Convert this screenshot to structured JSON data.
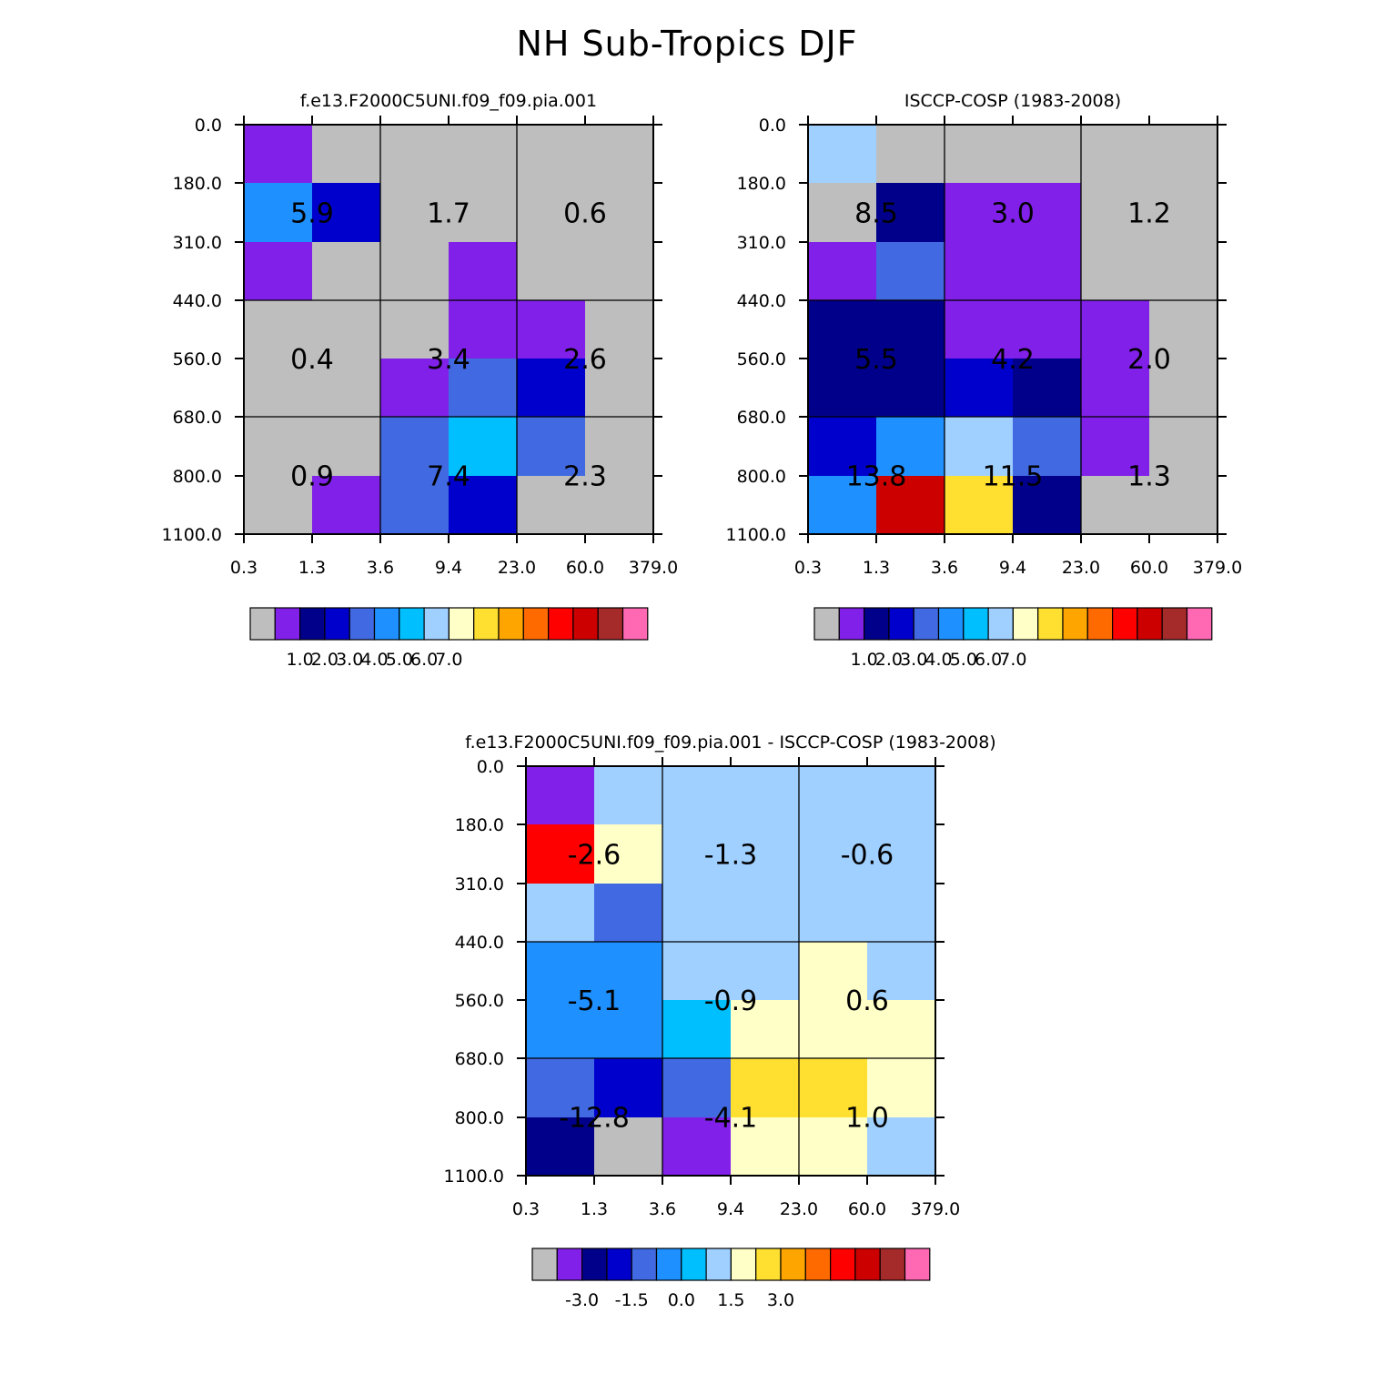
{
  "title": "NH Sub-Tropics DJF",
  "chart_data": [
    {
      "type": "heatmap",
      "title": "f.e13.F2000C5UNI.f09_f09.pia.001",
      "x_ticks": [
        "0.3",
        "1.3",
        "3.6",
        "9.4",
        "23.0",
        "60.0",
        "379.0"
      ],
      "y_ticks": [
        "0.0",
        "180.0",
        "310.0",
        "440.0",
        "560.0",
        "680.0",
        "800.0",
        "1100.0"
      ],
      "cells": [
        [
          1,
          0,
          0,
          0,
          0,
          0
        ],
        [
          5,
          3,
          0,
          0,
          0,
          0
        ],
        [
          1,
          0,
          0,
          1,
          0,
          0
        ],
        [
          0,
          0,
          0,
          1,
          1,
          0
        ],
        [
          0,
          0,
          1,
          4,
          3,
          0
        ],
        [
          0,
          0,
          4,
          6,
          4,
          0
        ],
        [
          0,
          1,
          4,
          3,
          0,
          0
        ]
      ],
      "box_labels": [
        [
          "5.9",
          "1.7",
          "0.6"
        ],
        [
          "0.4",
          "3.4",
          "2.6"
        ],
        [
          "0.9",
          "7.4",
          "2.3"
        ]
      ],
      "colorbar_labels": [
        "1.0",
        "2.0",
        "3.0",
        "4.0",
        "5.0",
        "6.0",
        "7.0"
      ]
    },
    {
      "type": "heatmap",
      "title": "ISCCP-COSP (1983-2008)",
      "x_ticks": [
        "0.3",
        "1.3",
        "3.6",
        "9.4",
        "23.0",
        "60.0",
        "379.0"
      ],
      "y_ticks": [
        "0.0",
        "180.0",
        "310.0",
        "440.0",
        "560.0",
        "680.0",
        "800.0",
        "1100.0"
      ],
      "cells": [
        [
          7,
          0,
          0,
          0,
          0,
          0
        ],
        [
          0,
          2,
          1,
          1,
          0,
          0
        ],
        [
          1,
          4,
          1,
          1,
          0,
          0
        ],
        [
          2,
          2,
          1,
          1,
          1,
          0
        ],
        [
          2,
          2,
          3,
          2,
          1,
          0
        ],
        [
          3,
          5,
          7,
          4,
          1,
          0
        ],
        [
          5,
          13,
          9,
          2,
          0,
          0
        ]
      ],
      "box_labels": [
        [
          "8.5",
          "3.0",
          "1.2"
        ],
        [
          "5.5",
          "4.2",
          "2.0"
        ],
        [
          "13.8",
          "11.5",
          "1.3"
        ]
      ],
      "colorbar_labels": [
        "1.0",
        "2.0",
        "3.0",
        "4.0",
        "5.0",
        "6.0",
        "7.0"
      ]
    },
    {
      "type": "heatmap",
      "title": "f.e13.F2000C5UNI.f09_f09.pia.001 - ISCCP-COSP (1983-2008)",
      "x_ticks": [
        "0.3",
        "1.3",
        "3.6",
        "9.4",
        "23.0",
        "60.0",
        "379.0"
      ],
      "y_ticks": [
        "0.0",
        "180.0",
        "310.0",
        "440.0",
        "560.0",
        "680.0",
        "800.0",
        "1100.0"
      ],
      "cells": [
        [
          1,
          7,
          7,
          7,
          7,
          7
        ],
        [
          12,
          8,
          7,
          7,
          7,
          7
        ],
        [
          7,
          4,
          7,
          7,
          7,
          7
        ],
        [
          5,
          5,
          7,
          7,
          8,
          7
        ],
        [
          5,
          5,
          6,
          8,
          8,
          8
        ],
        [
          4,
          3,
          4,
          9,
          9,
          8
        ],
        [
          2,
          0,
          1,
          8,
          8,
          7
        ]
      ],
      "box_labels": [
        [
          "-2.6",
          "-1.3",
          "-0.6"
        ],
        [
          "-5.1",
          "-0.9",
          "0.6"
        ],
        [
          "-12.8",
          "-4.1",
          "1.0"
        ]
      ],
      "colorbar_labels": [
        "-3.0",
        "-1.5",
        "0.0",
        "1.5",
        "3.0"
      ]
    }
  ],
  "palette": [
    "#bebebe",
    "#8020e8",
    "#00008b",
    "#0000cd",
    "#4169e1",
    "#1e90ff",
    "#00bfff",
    "#a0d0ff",
    "#ffffc8",
    "#ffe030",
    "#ffa500",
    "#ff6a00",
    "#ff0000",
    "#cd0000",
    "#a52a2a",
    "#ff69b4"
  ]
}
